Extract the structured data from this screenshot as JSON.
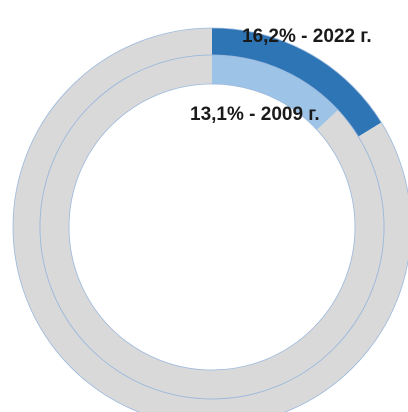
{
  "chart_data": {
    "type": "pie",
    "subtype": "doughnut",
    "rings": [
      {
        "name": "2022",
        "position": "outer",
        "slices": [
          {
            "value": 16.2,
            "color": "#2e75b6"
          },
          {
            "value": 83.8,
            "color": "#d9d9d9"
          }
        ],
        "label": "16,2% - 2022 г."
      },
      {
        "name": "2009",
        "position": "inner",
        "slices": [
          {
            "value": 13.1,
            "color": "#9dc3e6"
          },
          {
            "value": 86.9,
            "color": "#d9d9d9"
          }
        ],
        "label": "13,1% - 2009 г."
      }
    ],
    "title": "",
    "legend": "none"
  }
}
